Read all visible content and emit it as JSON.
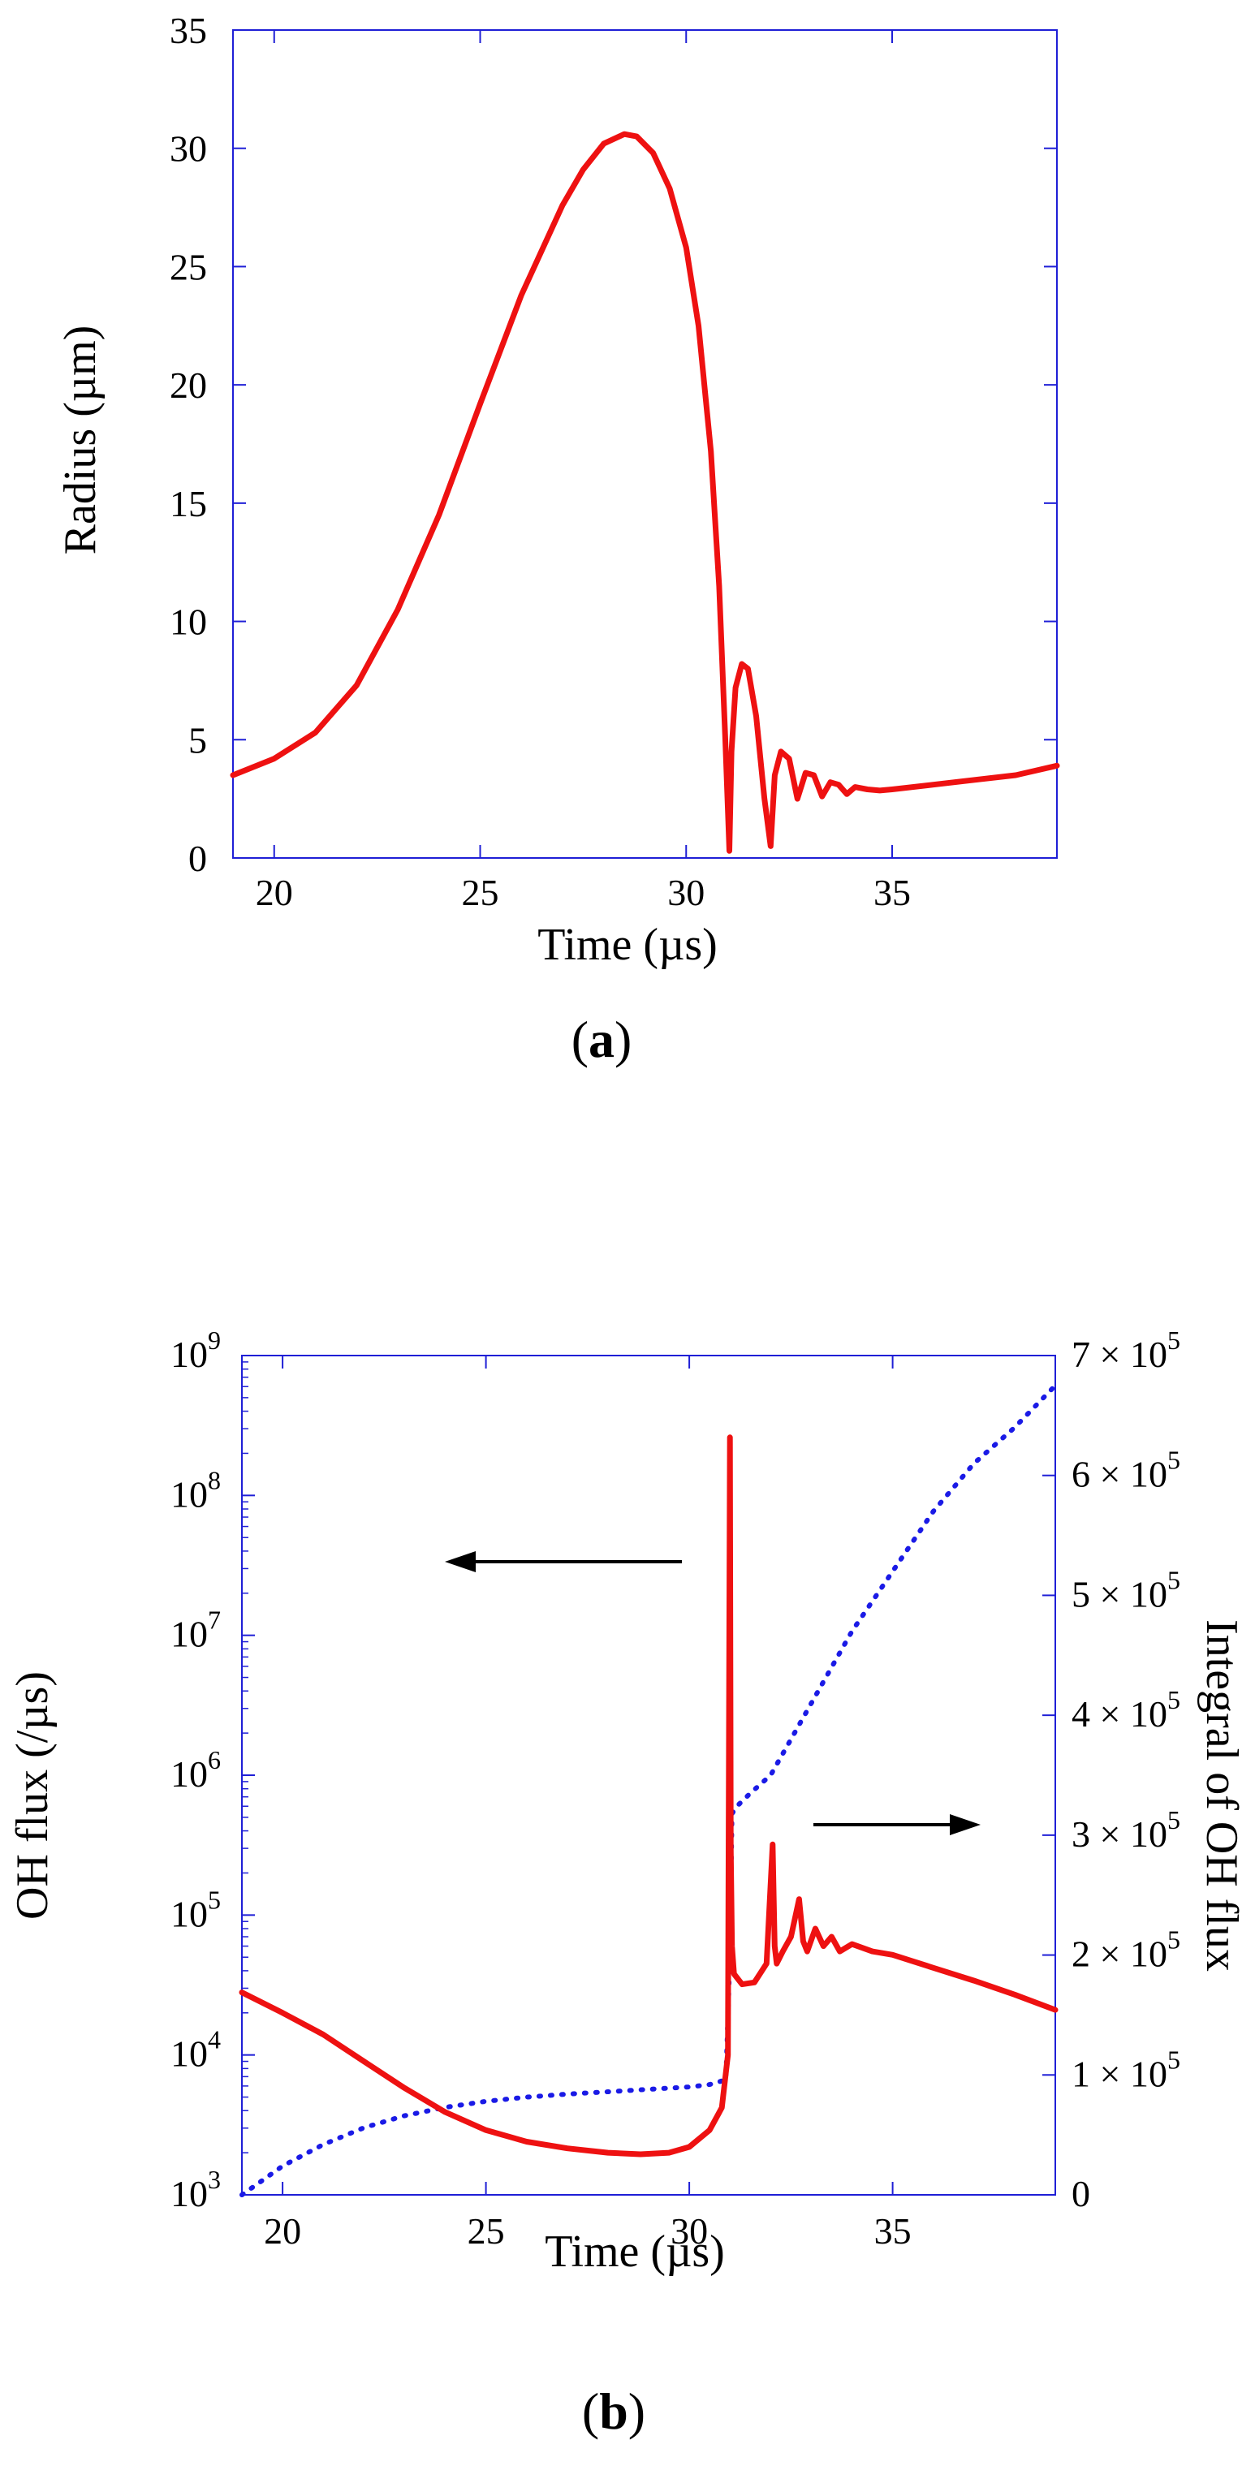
{
  "colors": {
    "axis": "#1f1fd6",
    "series_red": "#ee1111",
    "series_blue": "#1a1ae6",
    "text": "#000000",
    "arrow": "#000000"
  },
  "chart_data": [
    {
      "type": "line",
      "caption_open": "(",
      "caption_letter": "a",
      "caption_close": ")",
      "xlabel": "Time (µs)",
      "ylabel": "Radius (µm)",
      "xlim": [
        19,
        39
      ],
      "ylim": [
        0,
        35
      ],
      "xticks": [
        20,
        25,
        30,
        35
      ],
      "xtick_labels": [
        "20",
        "25",
        "30",
        "35"
      ],
      "yticks": [
        0,
        5,
        10,
        15,
        20,
        25,
        30,
        35
      ],
      "ytick_labels": [
        "0",
        "5",
        "10",
        "15",
        "20",
        "25",
        "30",
        "35"
      ],
      "series": [
        {
          "name": "Radius",
          "x": [
            19,
            20,
            21,
            22,
            23,
            24,
            25,
            26,
            27,
            27.5,
            28,
            28.5,
            28.8,
            29.2,
            29.6,
            30,
            30.3,
            30.6,
            30.8,
            30.95,
            31.05,
            31.1,
            31.2,
            31.35,
            31.5,
            31.7,
            31.9,
            32.05,
            32.15,
            32.3,
            32.5,
            32.7,
            32.9,
            33.1,
            33.3,
            33.5,
            33.7,
            33.9,
            34.1,
            34.4,
            34.7,
            35,
            36,
            37,
            38,
            39
          ],
          "y": [
            3.5,
            4.2,
            5.3,
            7.3,
            10.5,
            14.5,
            19.2,
            23.8,
            27.6,
            29.1,
            30.2,
            30.6,
            30.5,
            29.8,
            28.3,
            25.8,
            22.5,
            17.2,
            11.5,
            5.0,
            0.3,
            4.5,
            7.2,
            8.2,
            8.0,
            6.0,
            2.5,
            0.5,
            3.5,
            4.5,
            4.2,
            2.5,
            3.6,
            3.5,
            2.6,
            3.2,
            3.1,
            2.7,
            3.0,
            2.9,
            2.85,
            2.9,
            3.1,
            3.3,
            3.5,
            3.9
          ]
        }
      ]
    },
    {
      "type": "line",
      "caption_open": "(",
      "caption_letter": "b",
      "caption_close": ")",
      "xlabel": "Time (µs)",
      "ylabel_left": "OH flux (/µs)",
      "ylabel_right": "Integral of OH flux",
      "xlim": [
        19,
        39
      ],
      "xticks": [
        20,
        25,
        30,
        35
      ],
      "xtick_labels": [
        "20",
        "25",
        "30",
        "35"
      ],
      "left_axis": {
        "scale": "log",
        "ylim": [
          1000,
          1000000000
        ],
        "ytick_values": [
          1000,
          10000,
          100000,
          1000000,
          10000000,
          100000000,
          1000000000
        ],
        "ytick_base": "10",
        "ytick_exponents": [
          "3",
          "4",
          "5",
          "6",
          "7",
          "8",
          "9"
        ]
      },
      "right_axis": {
        "scale": "linear",
        "ylim": [
          0,
          700000
        ],
        "ytick_values": [
          0,
          100000,
          200000,
          300000,
          400000,
          500000,
          600000,
          700000
        ],
        "ytick_labels": [
          "0",
          "1 × 10",
          "2 × 10",
          "3 × 10",
          "4 × 10",
          "5 × 10",
          "6 × 10",
          "7 × 10"
        ],
        "ytick_exponent": "5"
      },
      "annotations": [
        {
          "type": "arrow",
          "direction": "left",
          "meaning": "red curve uses left axis"
        },
        {
          "type": "arrow",
          "direction": "right",
          "meaning": "blue curve uses right axis"
        }
      ],
      "series": [
        {
          "name": "OH flux",
          "axis": "left",
          "style": "solid",
          "x": [
            19,
            20,
            21,
            22,
            23,
            24,
            25,
            26,
            27,
            28,
            28.8,
            29.5,
            30,
            30.5,
            30.8,
            30.95,
            31.0,
            31.02,
            31.05,
            31.1,
            31.3,
            31.6,
            31.9,
            32.05,
            32.1,
            32.15,
            32.3,
            32.5,
            32.7,
            32.8,
            32.9,
            33.1,
            33.3,
            33.5,
            33.7,
            34,
            34.5,
            35,
            36,
            37,
            38,
            39
          ],
          "y": [
            28000,
            20000,
            14000,
            9000,
            5800,
            3900,
            2900,
            2400,
            2150,
            2000,
            1950,
            2000,
            2200,
            2900,
            4200,
            10000,
            260000000,
            300000,
            60000,
            38000,
            32000,
            33000,
            45000,
            320000,
            60000,
            45000,
            55000,
            70000,
            130000,
            65000,
            55000,
            80000,
            60000,
            70000,
            55000,
            62000,
            55000,
            52000,
            42000,
            34000,
            27000,
            21000
          ]
        },
        {
          "name": "Integral of OH flux",
          "axis": "right",
          "style": "dotted",
          "x": [
            19,
            19.5,
            20,
            21,
            22,
            23,
            24,
            25,
            26,
            27,
            28,
            29,
            30,
            30.5,
            30.9,
            31.0,
            31.05,
            31.2,
            31.5,
            32,
            32.5,
            33,
            33.5,
            34,
            34.5,
            35,
            36,
            37,
            38,
            39
          ],
          "y": [
            0,
            12000,
            24000,
            42000,
            56000,
            66000,
            73000,
            78000,
            81500,
            84000,
            86000,
            88000,
            90000,
            92000,
            96000,
            200000,
            318000,
            325000,
            335000,
            350000,
            380000,
            410000,
            440000,
            470000,
            495000,
            520000,
            570000,
            610000,
            640000,
            675000
          ]
        }
      ]
    }
  ]
}
